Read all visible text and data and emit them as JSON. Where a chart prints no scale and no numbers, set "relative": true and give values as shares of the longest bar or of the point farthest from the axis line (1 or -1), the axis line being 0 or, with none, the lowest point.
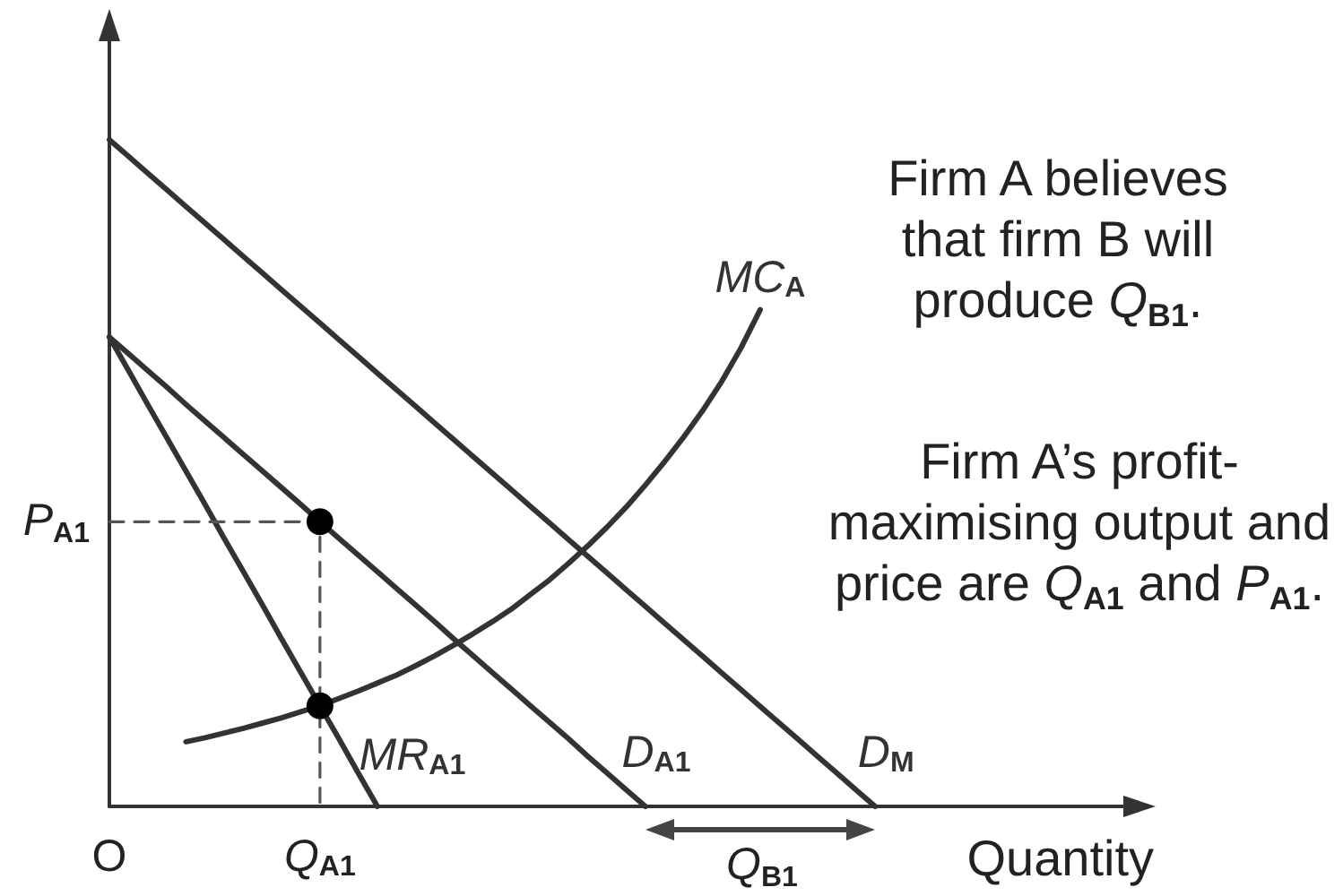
{
  "chart_data": {
    "type": "line",
    "relative": true,
    "xlabel": "Quantity",
    "tick_labels": "x",
    "grid": false,
    "legend": false,
    "categories": [
      "O",
      null,
      null,
      null,
      null,
      null,
      null,
      null,
      null,
      null,
      null,
      "Q$_{A1}$",
      null,
      null,
      null,
      null,
      null,
      null,
      null,
      null,
      null,
      null,
      null,
      null,
      null,
      null,
      null,
      null,
      null,
      null,
      null,
      null,
      null,
      null,
      null,
      null,
      null,
      null,
      null,
      null,
      null,
      null,
      null,
      null,
      null,
      null,
      null,
      null,
      null,
      null,
      null,
      null,
      null,
      null,
      null
    ],
    "series": [
      {
        "name": "D$_{M}$",
        "color": "#333333",
        "values": [
          1,
          0.975,
          0.95,
          0.925,
          0.9,
          0.875,
          0.85,
          0.825,
          0.8,
          0.775,
          0.75,
          0.725,
          0.7,
          0.675,
          0.65,
          0.625,
          0.6,
          0.575,
          0.55,
          0.525,
          0.5,
          0.475,
          0.45,
          0.425,
          0.4,
          0.375,
          0.35,
          0.325,
          0.3,
          0.275,
          0.25,
          0.225,
          0.2,
          0.175,
          0.15,
          0.125,
          0.1,
          0.075,
          0.05,
          0.025,
          0,
          null,
          null,
          null,
          null,
          null,
          null,
          null,
          null,
          null,
          null,
          null,
          null,
          null,
          null
        ]
      },
      {
        "name": "D$_{A1}$",
        "color": "#333333",
        "values": [
          0.704,
          0.679,
          0.654,
          0.629,
          0.603,
          0.578,
          0.553,
          0.528,
          0.503,
          0.478,
          0.453,
          0.427,
          0.402,
          0.377,
          0.352,
          0.327,
          0.302,
          0.277,
          0.251,
          0.226,
          0.201,
          0.176,
          0.151,
          0.126,
          0.101,
          0.075,
          0.05,
          0.025,
          0,
          null,
          null,
          null,
          null,
          null,
          null,
          null,
          null,
          null,
          null,
          null,
          null,
          null,
          null,
          null,
          null,
          null,
          null,
          null,
          null,
          null,
          null,
          null,
          null,
          null,
          null
        ]
      },
      {
        "name": "MR$_{A1}$",
        "color": "#333333",
        "values": [
          0.704,
          0.654,
          0.603,
          0.553,
          0.503,
          0.453,
          0.402,
          0.352,
          0.302,
          0.251,
          0.201,
          0.151,
          0.101,
          0.05,
          0,
          null,
          null,
          null,
          null,
          null,
          null,
          null,
          null,
          null,
          null,
          null,
          null,
          null,
          null,
          null,
          null,
          null,
          null,
          null,
          null,
          null,
          null,
          null,
          null,
          null,
          null,
          null,
          null,
          null,
          null,
          null,
          null,
          null,
          null,
          null,
          null,
          null,
          null,
          null,
          null
        ]
      },
      {
        "name": "MC$_{A}$",
        "color": "#333333",
        "values": [
          null,
          null,
          null,
          null,
          0.097,
          0.103,
          0.11,
          0.117,
          0.125,
          0.133,
          0.142,
          0.151,
          0.162,
          0.173,
          0.185,
          0.197,
          0.211,
          0.226,
          0.242,
          0.259,
          0.277,
          0.296,
          0.318,
          0.34,
          0.365,
          0.391,
          0.419,
          0.449,
          0.482,
          0.517,
          0.554,
          0.594,
          0.638,
          0.688,
          0.745,
          null,
          null,
          null,
          null,
          null,
          null,
          null,
          null,
          null,
          null,
          null,
          null,
          null,
          null,
          null,
          null,
          null,
          null,
          null,
          null
        ]
      },
      {
        "type": "step",
        "color": "#555555",
        "line_style": "dashed",
        "values": [
          0.427,
          0.427,
          0.427,
          0.427,
          0.427,
          0.427,
          0.427,
          0.427,
          0.427,
          0.427,
          0.427,
          0,
          null,
          null,
          null,
          null,
          null,
          null,
          null,
          null,
          null,
          null,
          null,
          null,
          null,
          null,
          null,
          null,
          null,
          null,
          null,
          null,
          null,
          null,
          null,
          null,
          null,
          null,
          null,
          null,
          null,
          null,
          null,
          null,
          null,
          null,
          null,
          null,
          null,
          null,
          null,
          null,
          null,
          null,
          null
        ]
      },
      {
        "type": "scatter",
        "color": "#000000",
        "marker": "circle",
        "values": [
          null,
          null,
          null,
          null,
          null,
          null,
          null,
          null,
          null,
          null,
          null,
          0.427,
          null,
          null,
          null,
          null,
          null,
          null,
          null,
          null,
          null,
          null,
          null,
          null,
          null,
          null,
          null,
          null,
          null,
          null,
          null,
          null,
          null,
          null,
          null,
          null,
          null,
          null,
          null,
          null,
          null,
          null,
          null,
          null,
          null,
          null,
          null,
          null,
          null,
          null,
          null,
          null,
          null,
          null,
          null
        ]
      },
      {
        "type": "scatter",
        "color": "#000000",
        "marker": "circle",
        "values": [
          null,
          null,
          null,
          null,
          null,
          null,
          null,
          null,
          null,
          null,
          null,
          0.151,
          null,
          null,
          null,
          null,
          null,
          null,
          null,
          null,
          null,
          null,
          null,
          null,
          null,
          null,
          null,
          null,
          null,
          null,
          null,
          null,
          null,
          null,
          null,
          null,
          null,
          null,
          null,
          null,
          null,
          null,
          null,
          null,
          null,
          null,
          null,
          null,
          null,
          null,
          null,
          null,
          null,
          null,
          null
        ]
      }
    ],
    "annotations": [
      {
        "text": "P$_{A1}$",
        "x": "O",
        "y": 0.427
      },
      "Q$_{B1}$",
      "Firm A believes\nthat firm B will\nproduce Q$_{B1}$.",
      "Firm A’s profit-\nmaximising output and\nprice are Q$_{A1}$ and P$_{A1}$."
    ]
  }
}
